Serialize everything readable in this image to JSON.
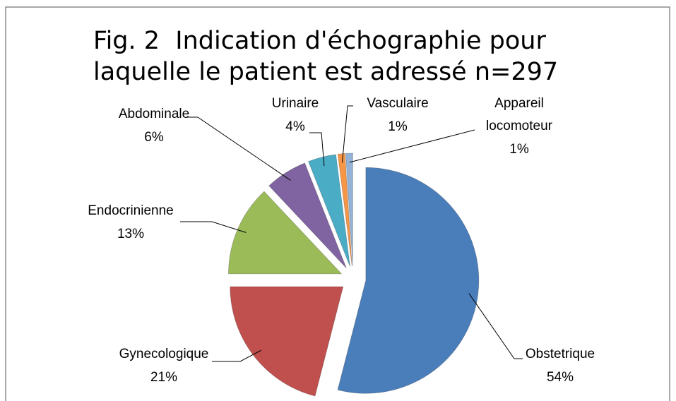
{
  "chart_data": {
    "type": "pie",
    "title": "Fig. 2  Indication d'échographie pour laquelle le patient est adressé n=297",
    "categories": [
      "Obstetrique",
      "Gynecologique",
      "Endocrinienne",
      "Abdominale",
      "Urinaire",
      "Vasculaire",
      "Appareil locomoteur"
    ],
    "values": [
      54,
      21,
      13,
      6,
      4,
      1,
      1
    ],
    "value_labels": [
      "54%",
      "21%",
      "13%",
      "6%",
      "4%",
      "1%",
      "1%"
    ],
    "colors": [
      "#4a7ebb",
      "#c0504d",
      "#9bbb59",
      "#8064a2",
      "#4bacc6",
      "#f79646",
      "#95b3d7"
    ]
  }
}
